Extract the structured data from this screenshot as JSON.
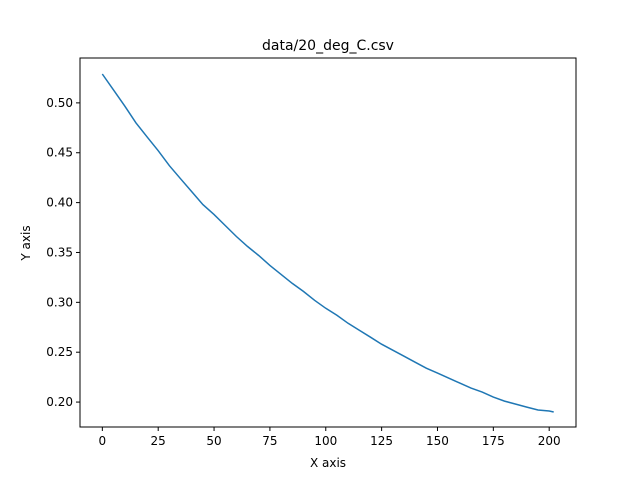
{
  "chart_data": {
    "type": "line",
    "title": "data/20_deg_C.csv",
    "xlabel": "X axis",
    "ylabel": "Y axis",
    "xlim": [
      -10,
      212
    ],
    "ylim": [
      0.175,
      0.545
    ],
    "xticks": [
      0,
      25,
      50,
      75,
      100,
      125,
      150,
      175,
      200
    ],
    "yticks": [
      0.2,
      0.25,
      0.3,
      0.35,
      0.4,
      0.45,
      0.5
    ],
    "ytick_labels": [
      "0.20",
      "0.25",
      "0.30",
      "0.35",
      "0.40",
      "0.45",
      "0.50"
    ],
    "grid": false,
    "legend": "none",
    "series": [
      {
        "color": "#1f77b4",
        "x": [
          0,
          5,
          10,
          15,
          20,
          25,
          30,
          35,
          40,
          45,
          50,
          55,
          60,
          65,
          70,
          75,
          80,
          85,
          90,
          95,
          100,
          105,
          110,
          115,
          120,
          125,
          130,
          135,
          140,
          145,
          150,
          155,
          160,
          165,
          170,
          175,
          180,
          185,
          190,
          195,
          200,
          202
        ],
        "y": [
          0.529,
          0.513,
          0.497,
          0.48,
          0.466,
          0.452,
          0.437,
          0.424,
          0.411,
          0.398,
          0.388,
          0.377,
          0.366,
          0.356,
          0.347,
          0.337,
          0.328,
          0.319,
          0.311,
          0.302,
          0.294,
          0.287,
          0.279,
          0.272,
          0.265,
          0.258,
          0.252,
          0.246,
          0.24,
          0.234,
          0.229,
          0.224,
          0.219,
          0.214,
          0.21,
          0.205,
          0.201,
          0.198,
          0.195,
          0.192,
          0.191,
          0.19
        ]
      }
    ]
  }
}
